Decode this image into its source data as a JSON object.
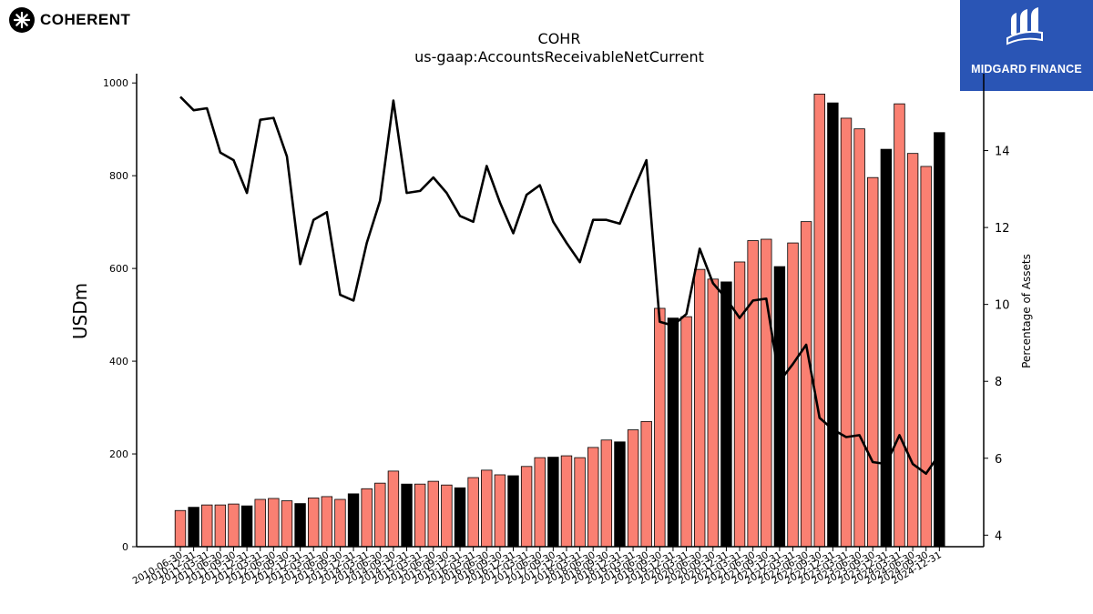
{
  "branding": {
    "left_logo_text": "COHERENT",
    "right_logo_text": "MIDGARD FINANCE",
    "right_logo_bg": "#2a55b5"
  },
  "chart_data": {
    "type": "bar",
    "title": "COHR",
    "subtitle": "us-gaap:AccountsReceivableNetCurrent",
    "ylabel": "USDm",
    "y2label": "Percentage of Assets",
    "ylim": [
      0,
      1020
    ],
    "y2lim": [
      3.7,
      16.0
    ],
    "yticks": [
      0,
      200,
      400,
      600,
      800,
      1000
    ],
    "y2ticks": [
      4,
      6,
      8,
      10,
      12,
      14
    ],
    "colors": {
      "quarter_bar": "#fa8072",
      "fiscal_year_end_bar": "#000000",
      "line": "#000000",
      "bar_edge": "#000000"
    },
    "categories": [
      "2010-06-30",
      "2010-12-31",
      "2011-03-31",
      "2011-06-30",
      "2011-09-30",
      "2011-12-31",
      "2012-03-31",
      "2012-06-30",
      "2012-09-30",
      "2012-12-31",
      "2013-03-31",
      "2013-06-30",
      "2013-09-30",
      "2013-12-31",
      "2014-03-31",
      "2014-06-30",
      "2014-09-30",
      "2014-12-31",
      "2015-03-31",
      "2015-06-30",
      "2015-09-30",
      "2015-12-31",
      "2016-03-31",
      "2016-06-30",
      "2016-09-30",
      "2016-12-31",
      "2017-03-31",
      "2017-06-30",
      "2017-09-30",
      "2017-12-31",
      "2018-03-31",
      "2018-06-30",
      "2018-09-30",
      "2018-12-31",
      "2019-03-31",
      "2019-06-30",
      "2019-09-30",
      "2019-12-31",
      "2020-03-31",
      "2020-06-30",
      "2020-09-30",
      "2020-12-31",
      "2021-03-31",
      "2021-06-30",
      "2021-09-30",
      "2021-12-31",
      "2022-03-31",
      "2022-06-30",
      "2022-09-30",
      "2022-12-31",
      "2023-03-31",
      "2023-06-30",
      "2023-09-30",
      "2023-12-31",
      "2024-03-31",
      "2024-06-30",
      "2024-09-30",
      "2024-12-31"
    ],
    "series": [
      {
        "values": [
          78,
          85,
          90,
          90,
          92,
          88,
          102,
          104,
          99,
          93,
          105,
          108,
          102,
          114,
          125,
          137,
          163,
          135,
          135,
          141,
          133,
          127,
          149,
          165,
          155,
          153,
          173,
          192,
          193,
          196,
          192,
          214,
          230,
          226,
          252,
          270,
          514,
          493,
          496,
          598,
          577,
          571,
          614,
          660,
          663,
          604,
          655,
          701,
          976,
          957,
          924,
          901,
          796,
          857,
          955,
          848,
          820,
          893
        ],
        "fiscal_year_end": [
          false,
          true,
          false,
          false,
          false,
          true,
          false,
          false,
          false,
          true,
          false,
          false,
          false,
          true,
          false,
          false,
          false,
          true,
          false,
          false,
          false,
          true,
          false,
          false,
          false,
          true,
          false,
          false,
          true,
          false,
          false,
          false,
          false,
          true,
          false,
          false,
          false,
          true,
          false,
          false,
          false,
          true,
          false,
          false,
          false,
          true,
          false,
          false,
          false,
          true,
          false,
          false,
          false,
          true,
          false,
          false,
          false,
          true
        ]
      },
      {
        "values": [
          15.4,
          15.05,
          15.1,
          13.95,
          13.75,
          12.9,
          14.8,
          14.85,
          13.85,
          11.05,
          12.2,
          12.4,
          10.25,
          10.1,
          11.6,
          12.7,
          15.3,
          12.9,
          12.95,
          13.3,
          12.9,
          12.3,
          12.15,
          13.6,
          12.65,
          11.85,
          12.85,
          13.1,
          12.15,
          11.6,
          11.1,
          12.2,
          12.2,
          12.1,
          12.95,
          13.75,
          9.55,
          9.45,
          9.75,
          11.45,
          10.55,
          10.15,
          9.65,
          10.1,
          10.15,
          8.0,
          8.45,
          8.95,
          7.05,
          6.75,
          6.55,
          6.6,
          5.9,
          5.85,
          6.6,
          5.85,
          5.6,
          6.1
        ]
      }
    ],
    "grid": false,
    "legend": "none"
  }
}
